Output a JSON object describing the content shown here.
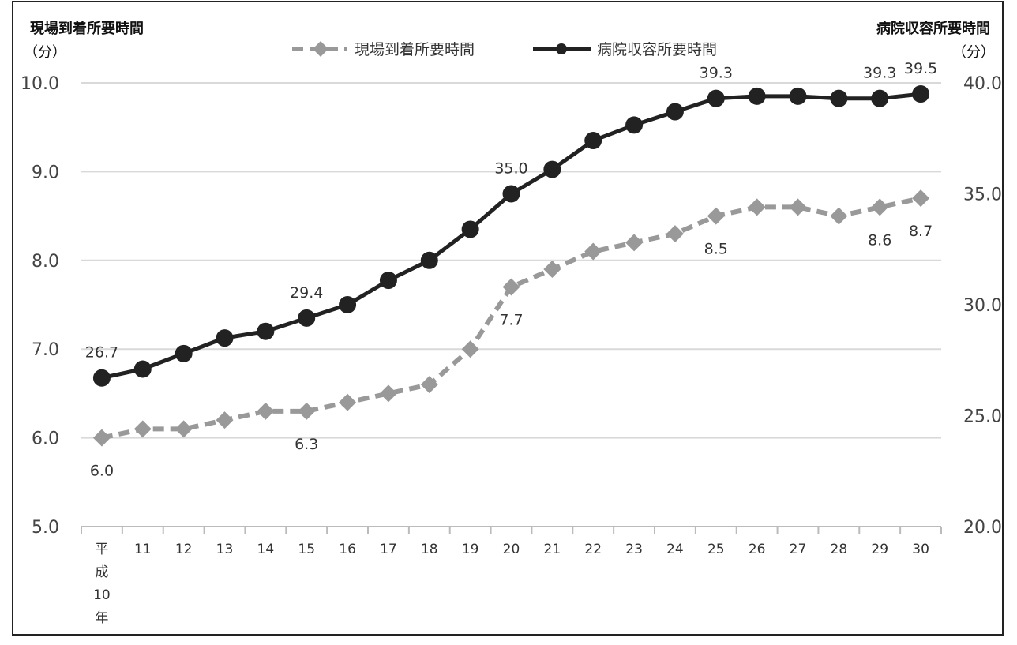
{
  "left_axis": {
    "title": "現場到着所要時間",
    "unit": "（分）",
    "ylim": [
      5,
      10
    ],
    "ticks": [
      "5.0",
      "6.0",
      "7.0",
      "8.0",
      "9.0",
      "10.0"
    ]
  },
  "right_axis": {
    "title": "病院収容所要時間",
    "unit": "（分）",
    "ylim": [
      20,
      40
    ],
    "ticks": [
      "20.0",
      "25.0",
      "30.0",
      "35.0",
      "40.0"
    ]
  },
  "chart_data": {
    "type": "line",
    "x": [
      "平成10年",
      "11",
      "12",
      "13",
      "14",
      "15",
      "16",
      "17",
      "18",
      "19",
      "20",
      "21",
      "22",
      "23",
      "24",
      "25",
      "26",
      "27",
      "28",
      "29",
      "30"
    ],
    "x_first_label_chars": [
      "平",
      "成",
      "10",
      "年"
    ],
    "series": [
      {
        "name": "現場到着所要時間",
        "axis": "left",
        "style": "dashed",
        "marker": "diamond",
        "color": "#999999",
        "values": [
          6.0,
          6.1,
          6.1,
          6.2,
          6.3,
          6.3,
          6.4,
          6.5,
          6.6,
          7.0,
          7.7,
          7.9,
          8.1,
          8.2,
          8.3,
          8.5,
          8.6,
          8.6,
          8.5,
          8.6,
          8.7
        ]
      },
      {
        "name": "病院収容所要時間",
        "axis": "right",
        "style": "solid",
        "marker": "circle",
        "color": "#222222",
        "values": [
          26.7,
          27.1,
          27.8,
          28.5,
          28.8,
          29.4,
          30.0,
          31.1,
          32.0,
          33.4,
          35.0,
          36.1,
          37.4,
          38.1,
          38.7,
          39.3,
          39.4,
          39.4,
          39.3,
          39.3,
          39.5
        ]
      }
    ],
    "data_labels": [
      {
        "series": 0,
        "index": 0,
        "text": "6.0",
        "pos": "below"
      },
      {
        "series": 0,
        "index": 5,
        "text": "6.3",
        "pos": "below"
      },
      {
        "series": 0,
        "index": 10,
        "text": "7.7",
        "pos": "below"
      },
      {
        "series": 0,
        "index": 15,
        "text": "8.5",
        "pos": "below"
      },
      {
        "series": 0,
        "index": 19,
        "text": "8.6",
        "pos": "below"
      },
      {
        "series": 0,
        "index": 20,
        "text": "8.7",
        "pos": "below"
      },
      {
        "series": 1,
        "index": 0,
        "text": "26.7",
        "pos": "above"
      },
      {
        "series": 1,
        "index": 5,
        "text": "29.4",
        "pos": "above"
      },
      {
        "series": 1,
        "index": 10,
        "text": "35.0",
        "pos": "above"
      },
      {
        "series": 1,
        "index": 15,
        "text": "39.3",
        "pos": "above"
      },
      {
        "series": 1,
        "index": 19,
        "text": "39.3",
        "pos": "above"
      },
      {
        "series": 1,
        "index": 20,
        "text": "39.5",
        "pos": "above"
      }
    ],
    "grid": true,
    "legend": "top-center"
  }
}
